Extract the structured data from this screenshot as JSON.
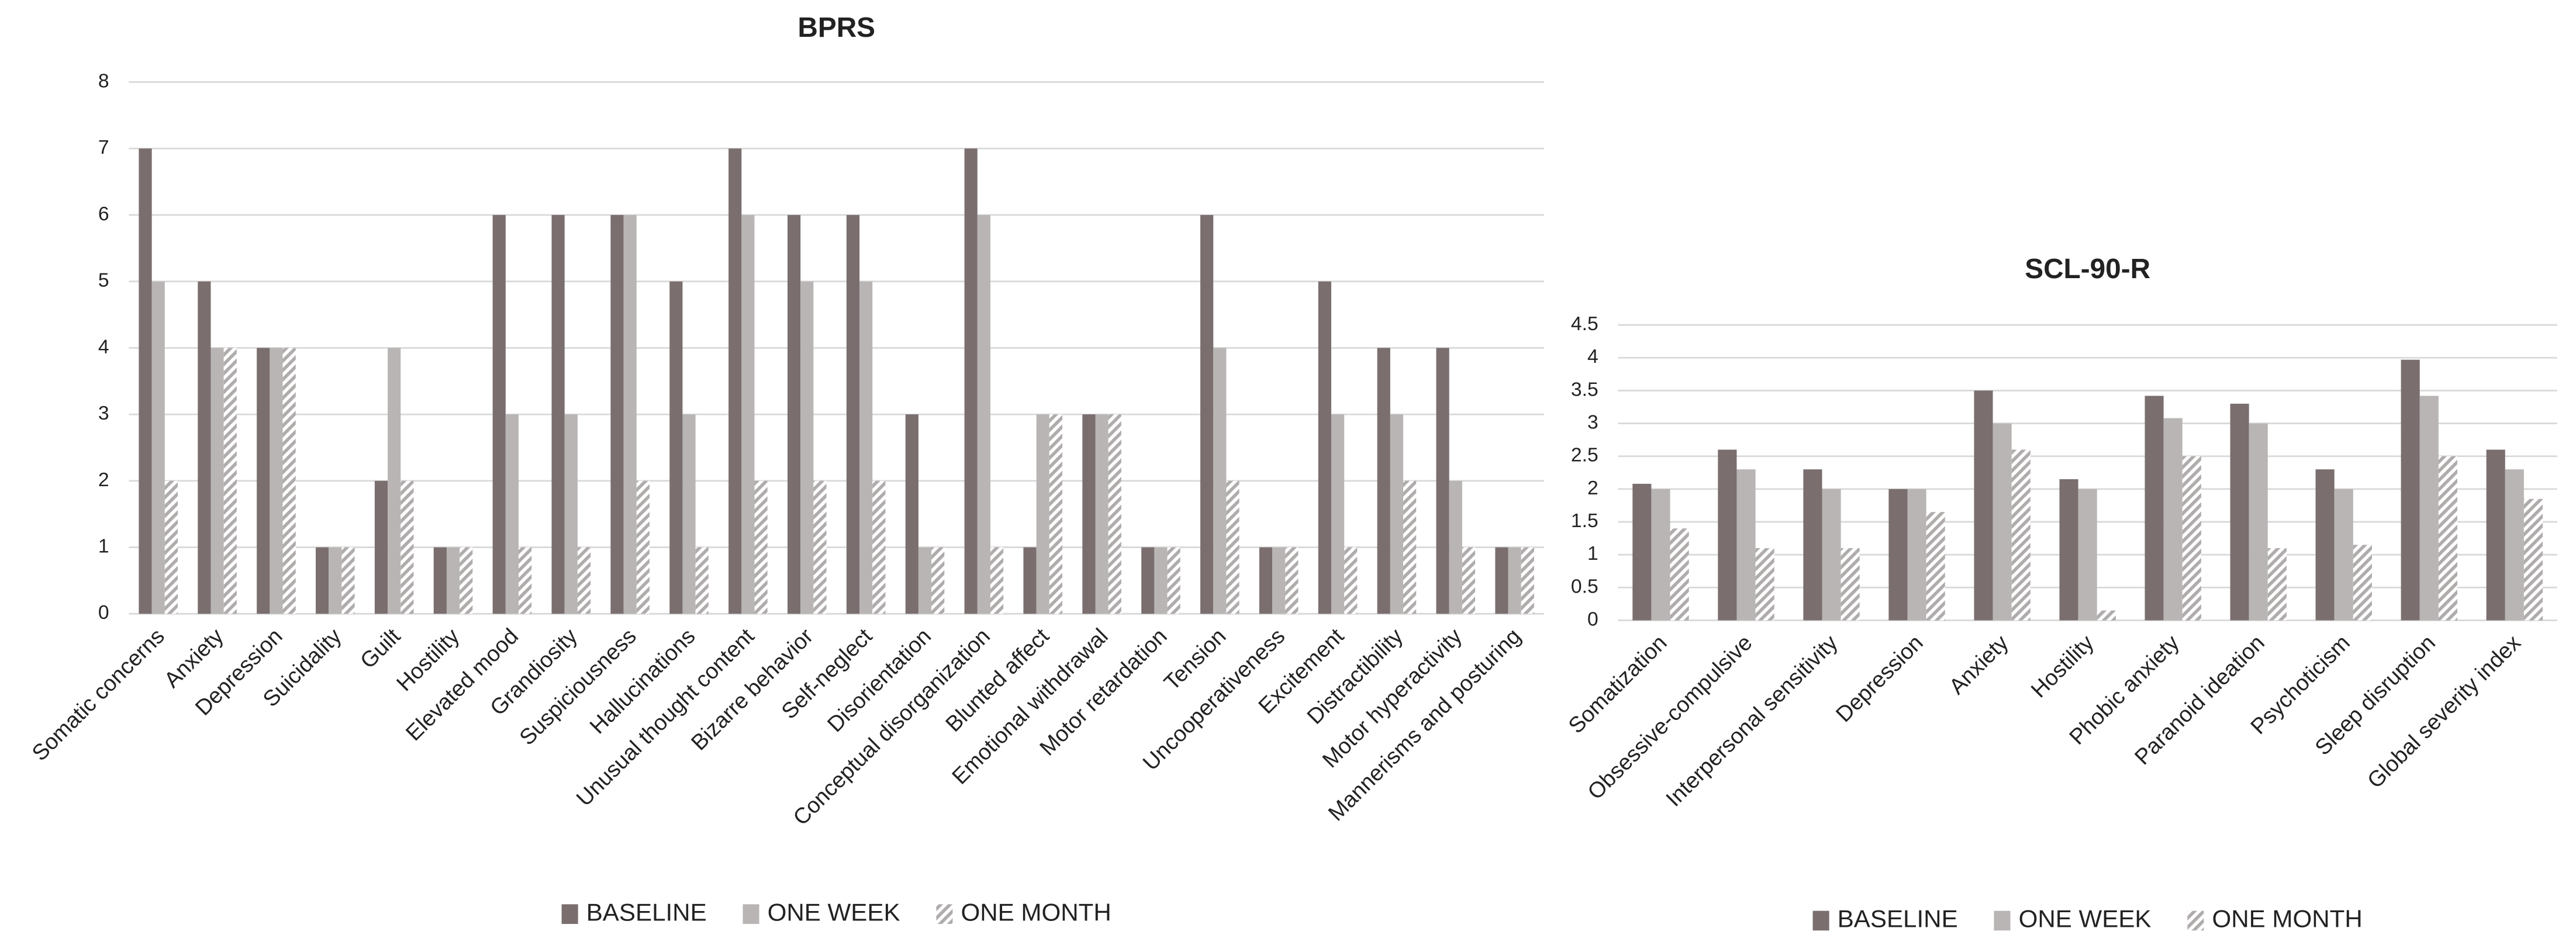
{
  "chart_data": [
    {
      "type": "bar",
      "title": "BPRS",
      "categories": [
        "Somatic concerns",
        "Anxiety",
        "Depression",
        "Suicidality",
        "Guilt",
        "Hostility",
        "Elevated mood",
        "Grandiosity",
        "Suspiciousness",
        "Hallucinations",
        "Unusual thought content",
        "Bizarre behavior",
        "Self-neglect",
        "Disorientation",
        "Conceptual disorganization",
        "Blunted affect",
        "Emotional withdrawal",
        "Motor retardation",
        "Tension",
        "Uncooperativeness",
        "Excitement",
        "Distractibility",
        "Motor hyperactivity",
        "Mannerisms and posturing"
      ],
      "series": [
        {
          "name": "BASELINE",
          "color": "#7a6e6e",
          "values": [
            7,
            5,
            4,
            1,
            2,
            1,
            6,
            6,
            6,
            5,
            7,
            6,
            6,
            3,
            7,
            1,
            3,
            1,
            6,
            1,
            5,
            4,
            4,
            1
          ]
        },
        {
          "name": "ONE WEEK",
          "color": "#b9b5b5",
          "values": [
            5,
            4,
            4,
            1,
            4,
            1,
            3,
            3,
            6,
            3,
            6,
            5,
            5,
            1,
            6,
            3,
            3,
            1,
            4,
            1,
            3,
            3,
            2,
            1
          ]
        },
        {
          "name": "ONE MONTH",
          "color": "#b0acac",
          "hatch": true,
          "values": [
            2,
            4,
            4,
            1,
            2,
            1,
            1,
            1,
            2,
            1,
            2,
            2,
            2,
            1,
            1,
            3,
            3,
            1,
            2,
            1,
            1,
            2,
            1,
            1
          ]
        }
      ],
      "ylim": [
        0,
        8
      ],
      "yticks": [
        0,
        1,
        2,
        3,
        4,
        5,
        6,
        7,
        8
      ],
      "grid": true,
      "legend": "bottom"
    },
    {
      "type": "bar",
      "title": "SCL-90-R",
      "categories": [
        "Somatization",
        "Obsessive-compulsive",
        "Interpersonal sensitivity",
        "Depression",
        "Anxiety",
        "Hostility",
        "Phobic anxiety",
        "Paranoid ideation",
        "Psychoticism",
        "Sleep disruption",
        "Global severity index"
      ],
      "series": [
        {
          "name": "BASELINE",
          "color": "#7a6e6e",
          "values": [
            2.08,
            2.6,
            2.3,
            2.0,
            3.5,
            2.15,
            3.42,
            3.3,
            2.3,
            3.97,
            2.6
          ]
        },
        {
          "name": "ONE WEEK",
          "color": "#b9b5b5",
          "values": [
            2.0,
            2.3,
            2.0,
            2.0,
            3.0,
            2.0,
            3.08,
            3.0,
            2.0,
            3.42,
            2.3
          ]
        },
        {
          "name": "ONE MONTH",
          "color": "#b0acac",
          "hatch": true,
          "values": [
            1.4,
            1.1,
            1.1,
            1.65,
            2.6,
            0.15,
            2.5,
            1.1,
            1.15,
            2.5,
            1.85
          ]
        }
      ],
      "ylim": [
        0,
        4.5
      ],
      "yticks": [
        0,
        0.5,
        1,
        1.5,
        2,
        2.5,
        3,
        3.5,
        4,
        4.5
      ],
      "grid": true,
      "legend": "bottom"
    }
  ]
}
